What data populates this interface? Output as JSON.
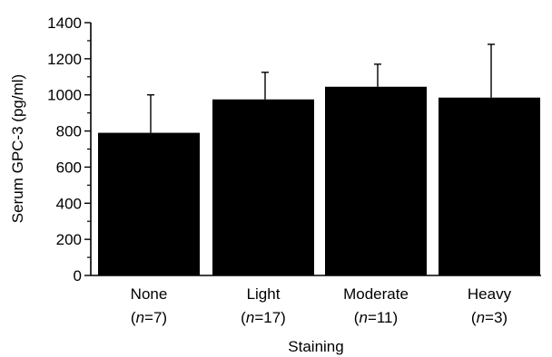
{
  "chart_data": {
    "type": "bar",
    "categories": [
      "None",
      "Light",
      "Moderate",
      "Heavy"
    ],
    "category_sublabels": [
      {
        "prefix": "(",
        "italic": "n",
        "suffix": "=7)"
      },
      {
        "prefix": "(",
        "italic": "n",
        "suffix": "=17)"
      },
      {
        "prefix": "(",
        "italic": "n",
        "suffix": "=11)"
      },
      {
        "prefix": "(",
        "italic": "n",
        "suffix": "=3)"
      }
    ],
    "values": [
      790,
      975,
      1045,
      985
    ],
    "error_upper": [
      1000,
      1125,
      1170,
      1280
    ],
    "xlabel": "Staining",
    "ylabel": "Serum GPC-3 (pg/ml)",
    "ylim": [
      0,
      1400
    ],
    "yticks": [
      0,
      200,
      400,
      600,
      800,
      1000,
      1200,
      1400
    ],
    "ytick_labels": [
      "0",
      "200",
      "400",
      "600",
      "800",
      "1000",
      "1200",
      "1400"
    ],
    "grid": false,
    "legend": "none",
    "bar_color": "#000000"
  }
}
